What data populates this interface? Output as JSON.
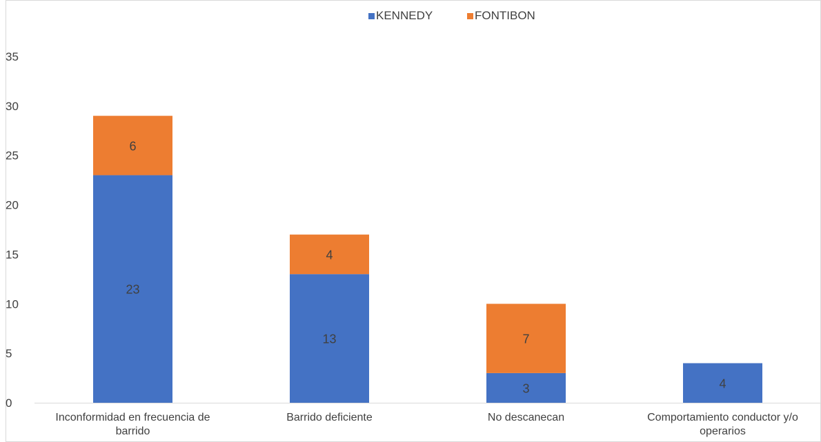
{
  "chart_data": {
    "type": "bar",
    "stacked": true,
    "categories": [
      [
        "Inconformidad en frecuencia de",
        "barrido"
      ],
      [
        "Barrido deficiente"
      ],
      [
        "No descanecan"
      ],
      [
        "Comportamiento conductor y/o",
        "operarios"
      ]
    ],
    "series": [
      {
        "name": "KENNEDY",
        "color": "#4472C4",
        "values": [
          23,
          13,
          3,
          4
        ]
      },
      {
        "name": "FONTIBON",
        "color": "#ED7D31",
        "values": [
          6,
          4,
          7,
          0
        ]
      }
    ],
    "ylim": [
      0,
      35
    ],
    "yticks": [
      0,
      5,
      10,
      15,
      20,
      25,
      30,
      35
    ],
    "legend_position": "top",
    "grid": false,
    "axis_line_color": "#D9D9D9",
    "text_color": "#404040"
  }
}
